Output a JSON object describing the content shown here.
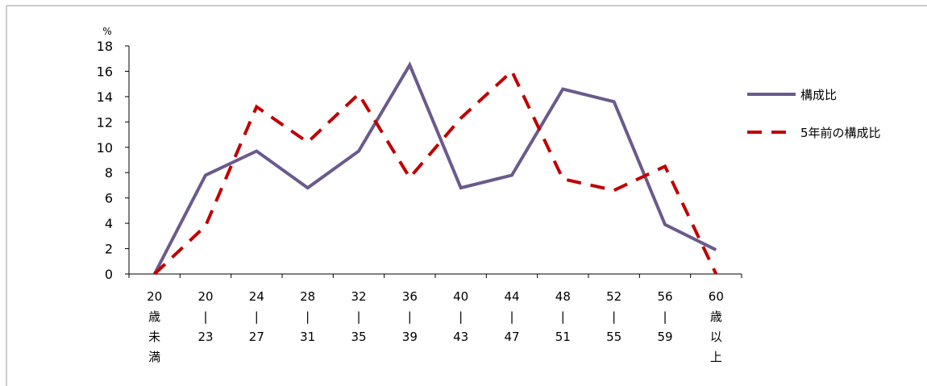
{
  "chart_data": {
    "type": "line",
    "unit": "%",
    "categories": [
      [
        "20",
        "歳",
        "未",
        "満"
      ],
      [
        "20",
        "|",
        "23"
      ],
      [
        "24",
        "|",
        "27"
      ],
      [
        "28",
        "|",
        "31"
      ],
      [
        "32",
        "|",
        "35"
      ],
      [
        "36",
        "|",
        "39"
      ],
      [
        "40",
        "|",
        "43"
      ],
      [
        "44",
        "|",
        "47"
      ],
      [
        "48",
        "|",
        "51"
      ],
      [
        "52",
        "|",
        "55"
      ],
      [
        "56",
        "|",
        "59"
      ],
      [
        "60",
        "歳",
        "以",
        "上"
      ]
    ],
    "series": [
      {
        "name": "構成比",
        "values": [
          0,
          7.8,
          9.7,
          6.8,
          9.7,
          16.5,
          6.8,
          7.8,
          14.6,
          13.6,
          3.9,
          1.9
        ],
        "color": "#6a5a8c",
        "style": "solid"
      },
      {
        "name": "5年前の構成比",
        "values": [
          0,
          3.8,
          13.2,
          10.4,
          14.2,
          7.6,
          12.3,
          16.0,
          7.5,
          6.6,
          8.5,
          0
        ],
        "color": "#c00000",
        "style": "dashed"
      }
    ],
    "yticks": [
      0,
      2,
      4,
      6,
      8,
      10,
      12,
      14,
      16,
      18
    ],
    "ylim": [
      0,
      18
    ],
    "legend_position": "right",
    "grid": false
  }
}
